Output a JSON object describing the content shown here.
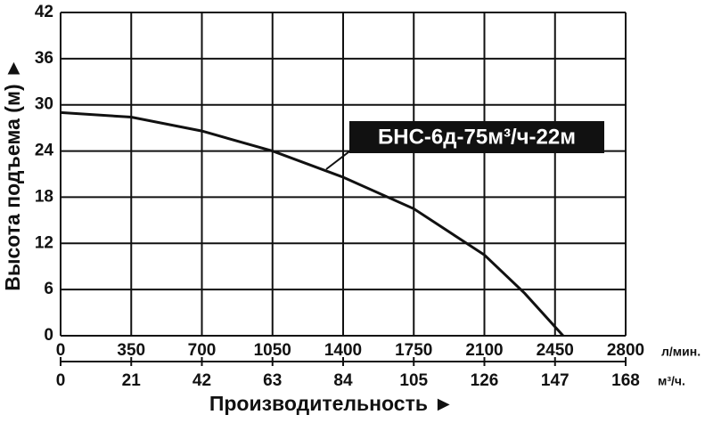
{
  "chart_data": {
    "type": "line",
    "ylabel": "Высота подъема (м) ►",
    "xlabel": "Производительность ►",
    "x_unit": "л/мин.",
    "x2_unit": "м³/ч.",
    "x": [
      0,
      350,
      700,
      1050,
      1400,
      1750,
      2100,
      2300,
      2490
    ],
    "series": [
      {
        "name": "БНС-6д-75м³/ч-22м",
        "color": "#111111",
        "values": [
          29,
          28.4,
          26.6,
          24,
          20.6,
          16.5,
          10.5,
          5.5,
          0
        ]
      }
    ],
    "xlim": [
      0,
      2800
    ],
    "xticks": [
      0,
      350,
      700,
      1050,
      1400,
      1750,
      2100,
      2450,
      2800
    ],
    "x2lim": [
      0,
      168
    ],
    "x2ticks": [
      0,
      21,
      42,
      63,
      84,
      105,
      126,
      147,
      168
    ],
    "ylim": [
      0,
      42
    ],
    "yticks": [
      0,
      6,
      12,
      18,
      24,
      30,
      36,
      42
    ],
    "grid": true
  }
}
